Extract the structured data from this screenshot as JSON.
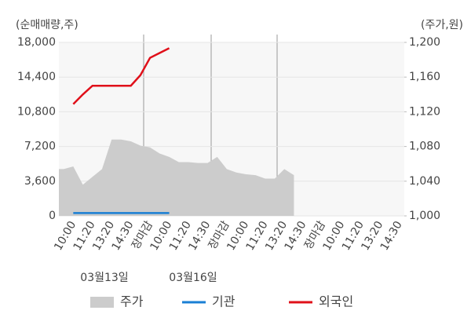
{
  "chart_data": {
    "type": "stock-flow",
    "y_label": "(순매매량,주)",
    "y2_label": "(주가,원)",
    "categories": [
      null,
      "10:00",
      null,
      "11:20",
      null,
      "13:20",
      null,
      "14:30",
      null,
      "장마감",
      null,
      "10:00",
      null,
      "11:20",
      null,
      "14:30",
      null,
      "장마감",
      null,
      "10:00",
      null,
      "11:20",
      null,
      "13:20",
      null,
      "14:30",
      null,
      "장마감",
      null,
      "10:00",
      null,
      "11:20",
      null,
      "13:20",
      null,
      "14:30"
    ],
    "dates": [
      "03월13일",
      "03월16일"
    ],
    "series": [
      {
        "name": "주가",
        "color": "#cccccc",
        "axis": "y2",
        "kind": "area",
        "values": [
          1054,
          1057,
          1036,
          1045,
          1054,
          1088,
          1088,
          1086,
          1081,
          1079,
          1072,
          1068,
          1062,
          1062,
          1061,
          1061,
          1068,
          1054,
          1050,
          1048,
          1047,
          1043,
          1043,
          1054,
          1047,
          null,
          null,
          null,
          null,
          null,
          null,
          null,
          null,
          null,
          null,
          null
        ]
      },
      {
        "name": "기관",
        "color": "#1a7fd4",
        "kind": "line",
        "values": [
          null,
          300,
          300,
          300,
          300,
          300,
          300,
          300,
          300,
          300,
          300,
          300,
          null,
          null,
          null,
          null,
          null,
          null,
          null,
          null,
          null,
          null,
          null,
          null,
          null,
          null,
          null,
          null,
          null,
          null,
          null,
          null,
          null,
          null,
          null,
          null
        ]
      },
      {
        "name": "외국인",
        "color": "#e0101a",
        "kind": "line",
        "values": [
          null,
          11600,
          12600,
          13500,
          13500,
          13500,
          13500,
          13500,
          14600,
          16400,
          16900,
          17400,
          null,
          null,
          null,
          null,
          null,
          null,
          null,
          null,
          null,
          null,
          null,
          null,
          null,
          null,
          null,
          null,
          null,
          null,
          null,
          null,
          null,
          null,
          null,
          null
        ]
      }
    ],
    "ylim": [
      0,
      18000
    ],
    "yticks": [
      0,
      {
        "value": 3600,
        "label": "3,600"
      },
      {
        "value": 7200,
        "label": "7,200"
      },
      {
        "value": 10800,
        "label": "10,800"
      },
      {
        "value": 14400,
        "label": "14,400"
      },
      {
        "value": 18000,
        "label": "18,000"
      }
    ],
    "y2lim": [
      1000,
      1200
    ],
    "y2ticks": [
      {
        "value": 1000,
        "label": "1,000"
      },
      {
        "value": 1040,
        "label": "1,040"
      },
      {
        "value": 1080,
        "label": "1,080"
      },
      {
        "value": 1120,
        "label": "1,120"
      },
      {
        "value": 1160,
        "label": "1,160"
      },
      {
        "value": 1200,
        "label": "1,200"
      }
    ],
    "highlight_color": "#e0101a",
    "grid": true
  }
}
